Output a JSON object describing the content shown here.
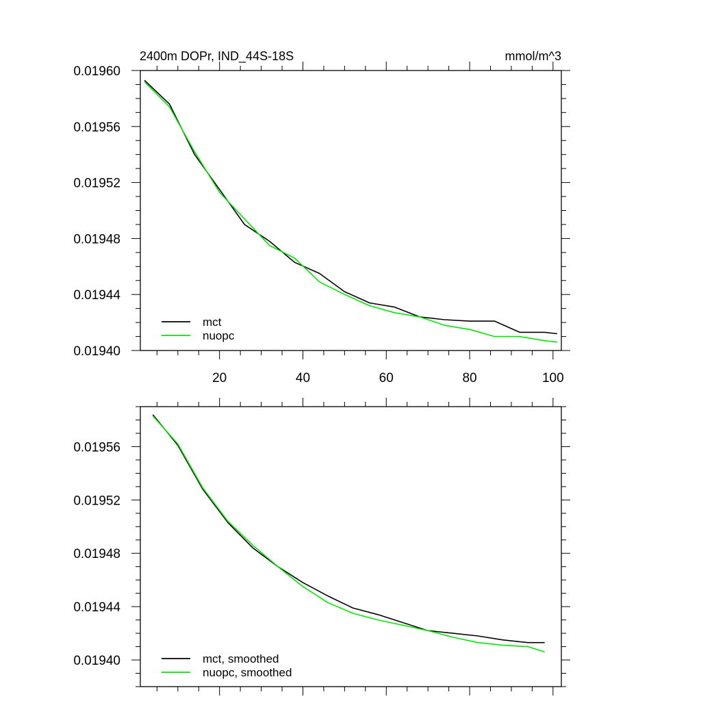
{
  "colors": {
    "mct": "#000000",
    "nuopc": "#00e600"
  },
  "chart_data": [
    {
      "type": "line",
      "title": "2400m DOPr, IND_44S-18S",
      "units": "mmol/m^3",
      "xlim": [
        1,
        102
      ],
      "ylim": [
        0.0194,
        0.0196
      ],
      "x_ticks": [
        20,
        40,
        60,
        80,
        100
      ],
      "x_tick_labels": [
        "20",
        "40",
        "60",
        "80",
        "100"
      ],
      "y_ticks": [
        0.0194,
        0.01944,
        0.01948,
        0.01952,
        0.01956,
        0.0196
      ],
      "y_tick_labels": [
        "0.01940",
        "0.01944",
        "0.01948",
        "0.01952",
        "0.01956",
        "0.01960"
      ],
      "legend": {
        "position": "bottom-left",
        "entries": [
          "mct",
          "nuopc"
        ]
      },
      "x": [
        2,
        8,
        14,
        20,
        26,
        32,
        38,
        44,
        50,
        56,
        62,
        68,
        74,
        80,
        86,
        92,
        98,
        101
      ],
      "series": [
        {
          "name": "mct",
          "values": [
            0.019593,
            0.019576,
            0.01954,
            0.019515,
            0.01949,
            0.019478,
            0.019463,
            0.019455,
            0.019442,
            0.019434,
            0.019431,
            0.019424,
            0.019422,
            0.019421,
            0.019421,
            0.019413,
            0.019413,
            0.019412
          ]
        },
        {
          "name": "nuopc",
          "values": [
            0.019592,
            0.019574,
            0.019542,
            0.019513,
            0.019494,
            0.019475,
            0.019466,
            0.019449,
            0.01944,
            0.019432,
            0.019427,
            0.019424,
            0.019418,
            0.019415,
            0.01941,
            0.01941,
            0.019407,
            0.019406
          ]
        }
      ]
    },
    {
      "type": "line",
      "xlim": [
        1,
        102
      ],
      "ylim": [
        0.01938,
        0.01959
      ],
      "y_ticks": [
        0.0194,
        0.01944,
        0.01948,
        0.01952,
        0.01956
      ],
      "y_tick_labels": [
        "0.01940",
        "0.01944",
        "0.01948",
        "0.01952",
        "0.01956"
      ],
      "x_ticks": [
        20,
        40,
        60,
        80,
        100
      ],
      "legend": {
        "position": "bottom-left",
        "entries": [
          "mct, smoothed",
          "nuopc, smoothed"
        ]
      },
      "x": [
        4,
        10,
        16,
        22,
        28,
        34,
        40,
        46,
        52,
        58,
        64,
        70,
        76,
        82,
        88,
        94,
        98
      ],
      "series": [
        {
          "name": "mct, smoothed",
          "values": [
            0.019584,
            0.019561,
            0.019528,
            0.019503,
            0.019484,
            0.01947,
            0.019458,
            0.019448,
            0.019439,
            0.019434,
            0.019428,
            0.019422,
            0.01942,
            0.019418,
            0.019415,
            0.019413,
            0.019413
          ]
        },
        {
          "name": "nuopc, smoothed",
          "values": [
            0.019583,
            0.019562,
            0.019529,
            0.019504,
            0.019486,
            0.01947,
            0.019455,
            0.019443,
            0.019435,
            0.01943,
            0.019426,
            0.019422,
            0.019417,
            0.019413,
            0.019411,
            0.01941,
            0.019406
          ]
        }
      ]
    }
  ]
}
